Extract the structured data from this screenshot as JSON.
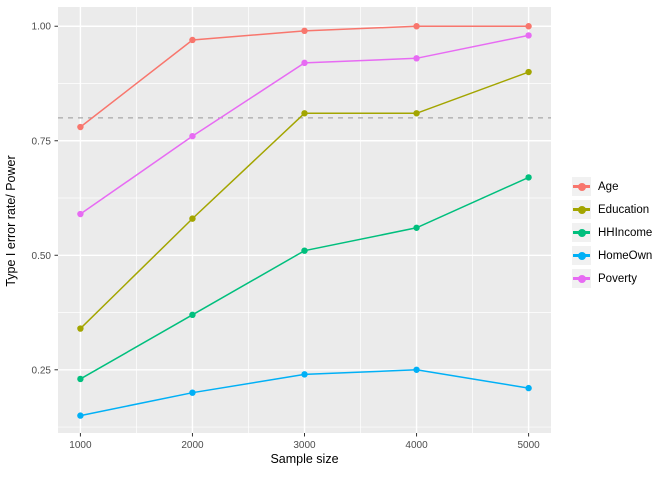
{
  "chart_data": {
    "type": "line",
    "xlabel": "Sample size",
    "ylabel": "Type I error rate/ Power",
    "x": [
      1000,
      2000,
      3000,
      4000,
      5000
    ],
    "x_tick_labels": [
      "1000",
      "2000",
      "3000",
      "4000",
      "5000"
    ],
    "y_ticks": [
      {
        "v": 0.25,
        "label": "0.25"
      },
      {
        "v": 0.5,
        "label": "0.50"
      },
      {
        "v": 0.75,
        "label": "0.75"
      },
      {
        "v": 1.0,
        "label": "1.00"
      }
    ],
    "xlim": [
      800,
      5200
    ],
    "ylim": [
      0.112,
      1.042
    ],
    "x_minor": [
      1500,
      2500,
      3500,
      4500
    ],
    "y_minor": [
      0.125,
      0.375,
      0.625,
      0.875
    ],
    "reference_line": {
      "y": 0.8,
      "style": "dashed",
      "color": "#A8A8A8"
    },
    "grid": {
      "panel_bg": "#EBEBEB",
      "gridline_color": "#FFFFFF",
      "tick_color": "#333333",
      "tick_label_color": "#4D4D4D"
    },
    "legend_position": "right",
    "series": [
      {
        "name": "Age",
        "color": "#F8766D",
        "values": [
          0.78,
          0.97,
          0.99,
          1.0,
          1.0
        ]
      },
      {
        "name": "Education",
        "color": "#A3A500",
        "values": [
          0.34,
          0.58,
          0.81,
          0.81,
          0.9
        ]
      },
      {
        "name": "HHIncome",
        "color": "#00BF7D",
        "values": [
          0.23,
          0.37,
          0.51,
          0.56,
          0.67
        ]
      },
      {
        "name": "HomeOwn",
        "color": "#00B0F6",
        "values": [
          0.15,
          0.2,
          0.24,
          0.25,
          0.21
        ]
      },
      {
        "name": "Poverty",
        "color": "#E76BF3",
        "values": [
          0.59,
          0.76,
          0.92,
          0.93,
          0.98
        ]
      }
    ]
  }
}
